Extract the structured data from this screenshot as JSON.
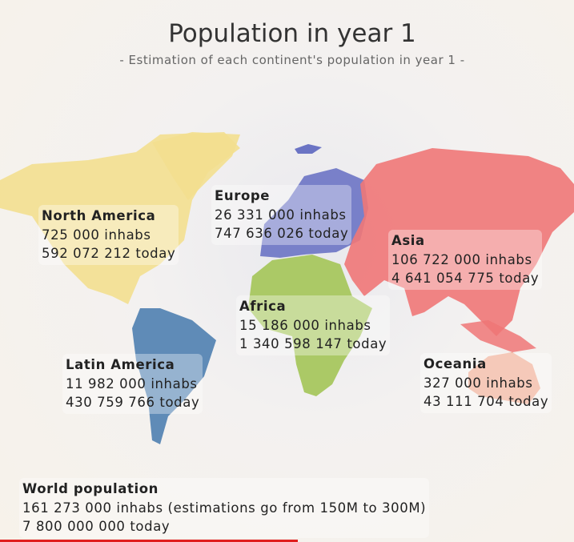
{
  "header": {
    "title": "Population in year 1",
    "subtitle": "- Estimation of each continent's population in year 1 -"
  },
  "regions": [
    {
      "name": "North America",
      "population": "725 000 inhabs",
      "today": "592 072 212 today"
    },
    {
      "name": "Europe",
      "population": "26 331 000 inhabs",
      "today": "747 636 026 today"
    },
    {
      "name": "Asia",
      "population": "106 722 000 inhabs",
      "today": "4 641 054 775 today"
    },
    {
      "name": "Africa",
      "population": "15 186 000 inhabs",
      "today": "1 340 598 147 today"
    },
    {
      "name": "Latin America",
      "population": "11 982 000 inhabs",
      "today": "430 759 766 today"
    },
    {
      "name": "Oceania",
      "population": "327 000 inhabs",
      "today": "43 111 704 today"
    }
  ],
  "world": {
    "name": "World population",
    "population": "161 273 000 inhabs (estimations go from 150M to 300M)",
    "today": "7 800 000 000 today"
  }
}
